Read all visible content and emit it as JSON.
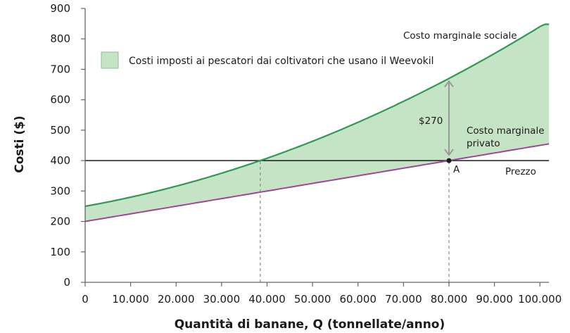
{
  "chart_data": {
    "type": "line",
    "title": "",
    "xlabel": "Quantità di banane, Q (tonnellate/anno)",
    "ylabel": "Costi ($)",
    "xlim": [
      0,
      102000
    ],
    "ylim": [
      0,
      900
    ],
    "grid": false,
    "x_ticks": [
      0,
      10000,
      20000,
      30000,
      40000,
      50000,
      60000,
      70000,
      80000,
      90000,
      100000
    ],
    "x_tick_labels": [
      "0",
      "10.000",
      "20.000",
      "30.000",
      "40.000",
      "50.000",
      "60.000",
      "70.000",
      "80.000",
      "90.000",
      "100.000"
    ],
    "y_ticks": [
      0,
      100,
      200,
      300,
      400,
      500,
      600,
      700,
      800,
      900
    ],
    "y_tick_labels": [
      "0",
      "100",
      "200",
      "300",
      "400",
      "500",
      "600",
      "700",
      "800",
      "900"
    ],
    "x": [
      0,
      10000,
      20000,
      30000,
      38500,
      40000,
      50000,
      60000,
      70000,
      80000,
      90000,
      100000,
      102000
    ],
    "series": [
      {
        "name": "Costo marginale sociale",
        "color": "#2e9a4f",
        "values": [
          250,
          280,
          316,
          358,
          400,
          408,
          464,
          526,
          595,
          670,
          752,
          840,
          848
        ]
      },
      {
        "name": "Costo marginale privato",
        "color": "#a0449a",
        "values": [
          200,
          225,
          250,
          275,
          296,
          300,
          325,
          350,
          375,
          400,
          425,
          450,
          455
        ]
      },
      {
        "name": "Prezzo",
        "color": "#1a1a1a",
        "values": [
          400,
          400,
          400,
          400,
          400,
          400,
          400,
          400,
          400,
          400,
          400,
          400,
          400
        ]
      }
    ],
    "shaded_area": {
      "label": "Costi imposti ai pescatori dai coltivatori che usano il Weevokil",
      "between": [
        "Costo marginale sociale",
        "Costo marginale privato"
      ],
      "color": "#c5e3c5"
    },
    "annotations": [
      {
        "text": "Costo marginale sociale",
        "x": 80000,
        "y": 810
      },
      {
        "text": "Costo marginale",
        "x": 84000,
        "y": 490
      },
      {
        "text": "privato",
        "x": 84000,
        "y": 455
      },
      {
        "text": "Prezzo",
        "x": 92000,
        "y": 360
      },
      {
        "text": "A",
        "x": 81000,
        "y": 375
      },
      {
        "text": "$270",
        "x": 74000,
        "y": 525
      }
    ],
    "points": [
      {
        "label": "A",
        "x": 80000,
        "y": 400
      }
    ],
    "reference_lines": [
      {
        "type": "vertical-dashed",
        "x": 38500,
        "from": 0,
        "to": 400
      },
      {
        "type": "vertical-dashed",
        "x": 80000,
        "from": 0,
        "to": 400
      },
      {
        "type": "double-arrow",
        "x": 80000,
        "from": 400,
        "to": 670,
        "label": "$270"
      }
    ],
    "legend_position": "top-left"
  },
  "labels": {
    "ylabel": "Costi ($)",
    "xlabel": "Quantità di banane, Q (tonnellate/anno)",
    "legend": "Costi imposti ai pescatori dai coltivatori che usano il Weevokil",
    "social": "Costo marginale sociale",
    "private_1": "Costo marginale",
    "private_2": "privato",
    "price": "Prezzo",
    "point_a": "A",
    "gap": "$270"
  }
}
